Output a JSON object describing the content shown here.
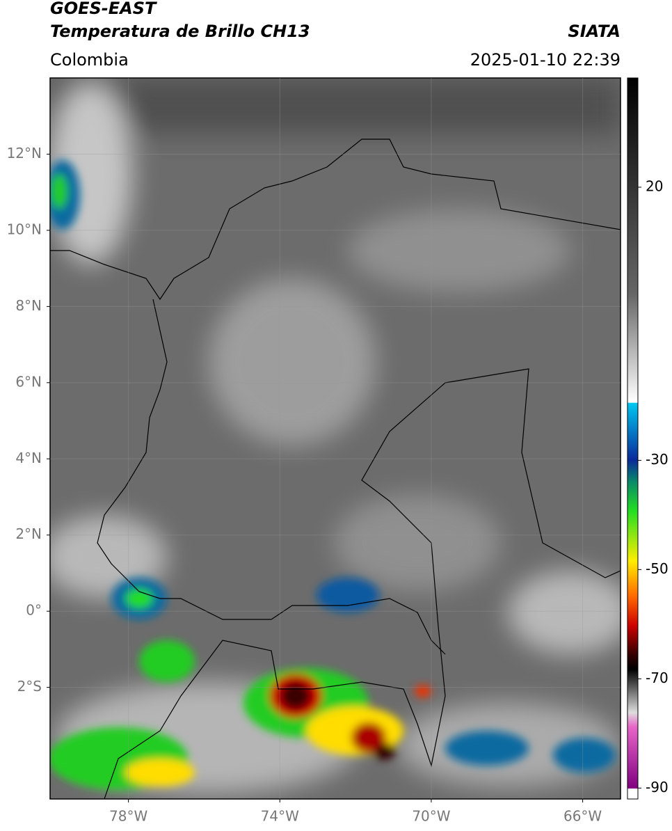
{
  "header": {
    "satellite": "GOES-EAST",
    "product": "Temperatura de Brillo CH13",
    "agency": "SIATA",
    "region": "Colombia",
    "timestamp": "2025-01-10 22:39"
  },
  "map": {
    "xlim": [
      -80.07,
      -65.0
    ],
    "ylim": [
      -4.93,
      14.0
    ],
    "xticks": [
      {
        "value": -78,
        "label": "78°W"
      },
      {
        "value": -74,
        "label": "74°W"
      },
      {
        "value": -70,
        "label": "70°W"
      },
      {
        "value": -66,
        "label": "66°W"
      }
    ],
    "yticks": [
      {
        "value": 12,
        "label": "12°N"
      },
      {
        "value": 10,
        "label": "10°N"
      },
      {
        "value": 8,
        "label": "8°N"
      },
      {
        "value": 6,
        "label": "6°N"
      },
      {
        "value": 4,
        "label": "4°N"
      },
      {
        "value": 2,
        "label": "2°N"
      },
      {
        "value": 0,
        "label": "0°"
      },
      {
        "value": -2,
        "label": "2°S"
      }
    ],
    "grid": true
  },
  "colorbar": {
    "lim": [
      -92,
      40
    ],
    "ticks": [
      20,
      -30,
      -50,
      -70,
      -90
    ]
  }
}
